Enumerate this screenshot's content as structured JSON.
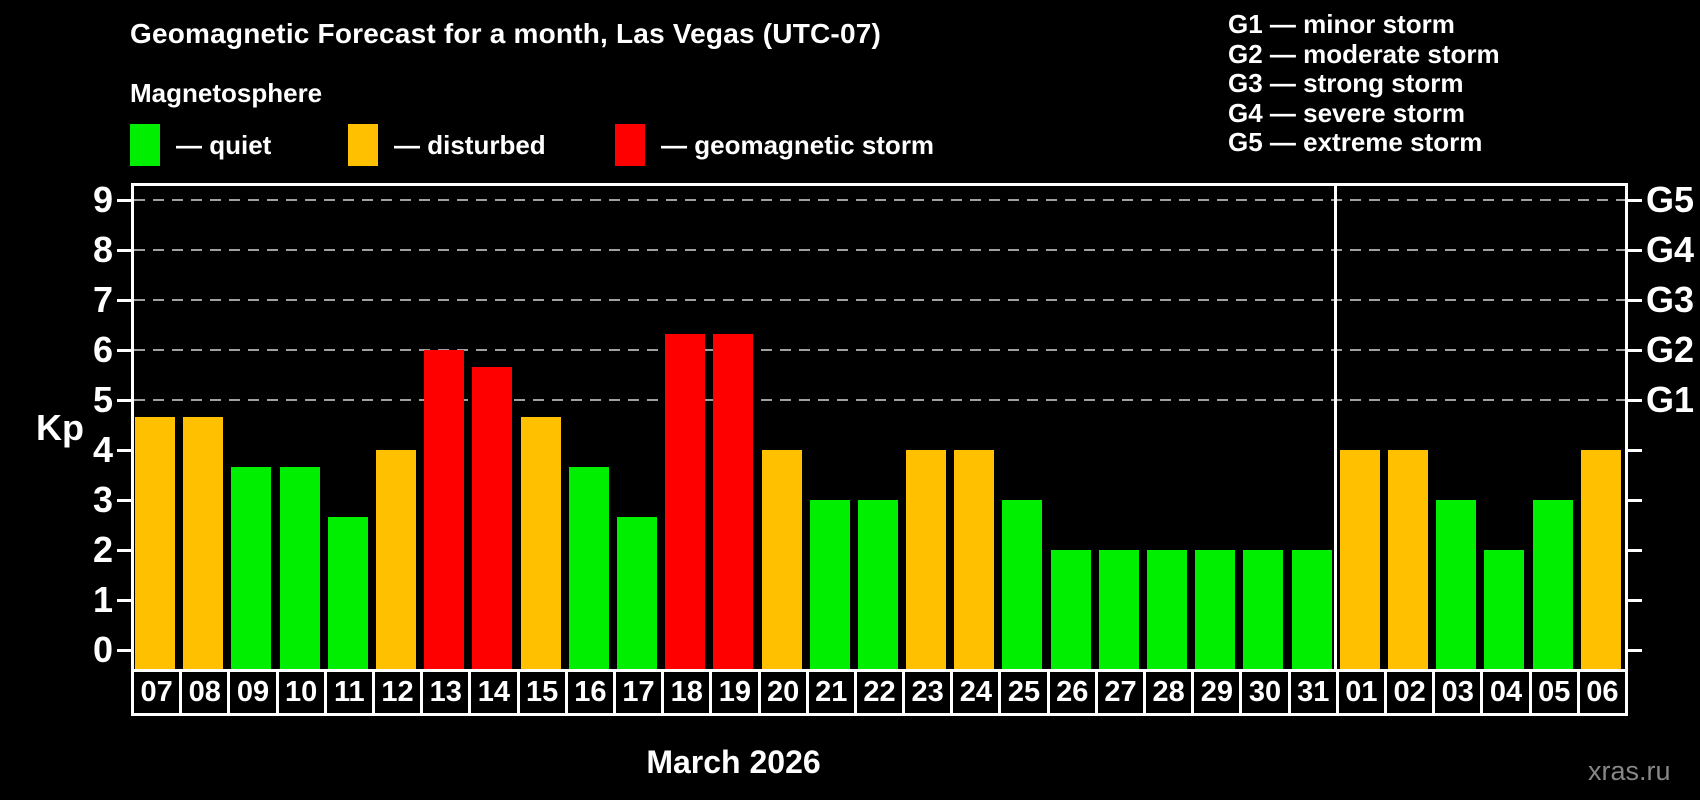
{
  "header": {
    "title": "Geomagnetic Forecast for a month, Las Vegas (UTC-07)",
    "subtitle": "Magnetosphere",
    "watermark": "xras.ru"
  },
  "legend": {
    "items": [
      {
        "status": "quiet",
        "label": "— quiet",
        "color": "#00EE00"
      },
      {
        "status": "disturbed",
        "label": "— disturbed",
        "color": "#FFC000"
      },
      {
        "status": "storm",
        "label": "— geomagnetic storm",
        "color": "#FF0000"
      }
    ]
  },
  "g_scale_legend": {
    "lines": [
      "G1 — minor storm",
      "G2 — moderate storm",
      "G3 — strong storm",
      "G4 — severe storm",
      "G5 — extreme storm"
    ]
  },
  "chart_data": {
    "type": "bar",
    "title": "Geomagnetic Forecast for a month, Las Vegas (UTC-07)",
    "xlabel": "March 2026",
    "ylabel": "Kp",
    "ylim": [
      0,
      9
    ],
    "yticks": [
      0,
      1,
      2,
      3,
      4,
      5,
      6,
      7,
      8,
      9
    ],
    "gridlines_at_kp": [
      5,
      6,
      7,
      8,
      9
    ],
    "grid": "dashed horizontal lines at storm levels only",
    "right_axis_labels": [
      {
        "kp": 5,
        "label": "G1"
      },
      {
        "kp": 6,
        "label": "G2"
      },
      {
        "kp": 7,
        "label": "G3"
      },
      {
        "kp": 8,
        "label": "G4"
      },
      {
        "kp": 9,
        "label": "G5"
      }
    ],
    "legend_position": "top-left",
    "month_divider_after_index": 24,
    "categories": [
      "07",
      "08",
      "09",
      "10",
      "11",
      "12",
      "13",
      "14",
      "15",
      "16",
      "17",
      "18",
      "19",
      "20",
      "21",
      "22",
      "23",
      "24",
      "25",
      "26",
      "27",
      "28",
      "29",
      "30",
      "31",
      "01",
      "02",
      "03",
      "04",
      "05",
      "06"
    ],
    "values": [
      4.67,
      4.67,
      3.67,
      3.67,
      2.67,
      4,
      6,
      5.67,
      4.67,
      3.67,
      2.67,
      6.33,
      6.33,
      4,
      3,
      3,
      4,
      4,
      3,
      2,
      2,
      2,
      2,
      2,
      2,
      4,
      4,
      3,
      2,
      3,
      4
    ],
    "statuses": [
      "disturbed",
      "disturbed",
      "quiet",
      "quiet",
      "quiet",
      "disturbed",
      "storm",
      "storm",
      "disturbed",
      "quiet",
      "quiet",
      "storm",
      "storm",
      "disturbed",
      "quiet",
      "quiet",
      "disturbed",
      "disturbed",
      "quiet",
      "quiet",
      "quiet",
      "quiet",
      "quiet",
      "quiet",
      "quiet",
      "disturbed",
      "disturbed",
      "quiet",
      "quiet",
      "quiet",
      "disturbed"
    ],
    "status_colors": {
      "quiet": "#00EE00",
      "disturbed": "#FFC000",
      "storm": "#FF0000"
    }
  }
}
